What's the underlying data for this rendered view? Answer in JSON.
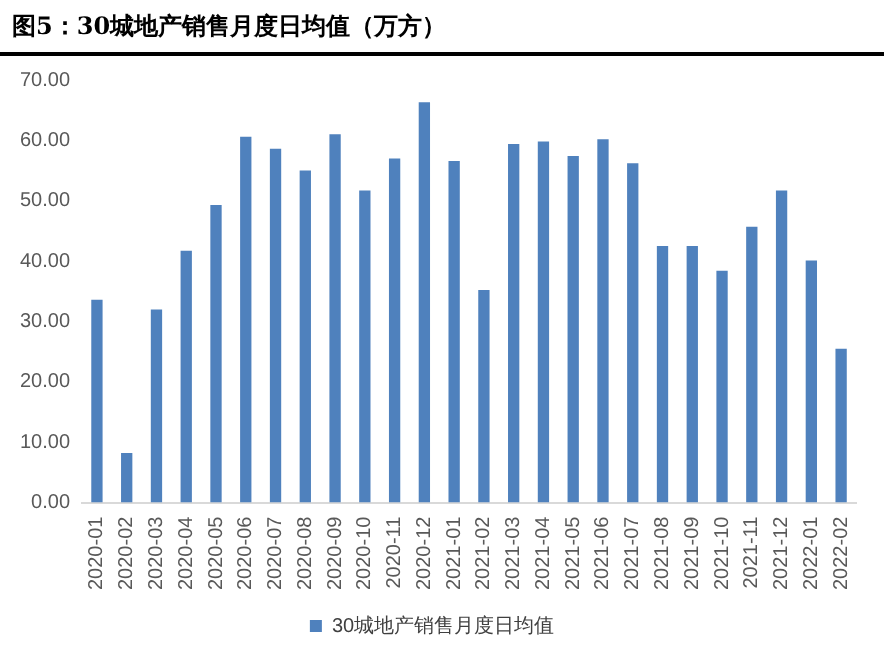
{
  "chart_data": {
    "type": "bar",
    "title": "图5：30城地产销售月度日均值（万方）",
    "categories": [
      "2020-01",
      "2020-02",
      "2020-03",
      "2020-04",
      "2020-05",
      "2020-06",
      "2020-07",
      "2020-08",
      "2020-09",
      "2020-10",
      "2020-11",
      "2020-12",
      "2021-01",
      "2021-02",
      "2021-03",
      "2021-04",
      "2021-05",
      "2021-06",
      "2021-07",
      "2021-08",
      "2021-09",
      "2021-10",
      "2021-11",
      "2021-12",
      "2022-01",
      "2022-02"
    ],
    "series": [
      {
        "name": "30城地产销售月度日均值",
        "color": "#4f81bd",
        "values": [
          33.6,
          8.2,
          32.0,
          41.7,
          49.3,
          60.6,
          58.6,
          55.0,
          61.0,
          51.7,
          57.0,
          66.3,
          56.6,
          35.2,
          59.4,
          59.8,
          57.4,
          60.2,
          56.2,
          42.5,
          42.5,
          38.4,
          45.7,
          51.7,
          40.1,
          25.5
        ]
      }
    ],
    "ylim": [
      0,
      70
    ],
    "yticks": [
      {
        "value": 0,
        "label": "0.00"
      },
      {
        "value": 10,
        "label": "10.00"
      },
      {
        "value": 20,
        "label": "20.00"
      },
      {
        "value": 30,
        "label": "30.00"
      },
      {
        "value": 40,
        "label": "40.00"
      },
      {
        "value": 50,
        "label": "50.00"
      },
      {
        "value": 60,
        "label": "60.00"
      },
      {
        "value": 70,
        "label": "70.00"
      }
    ],
    "grid": false,
    "legend": "bottom"
  }
}
